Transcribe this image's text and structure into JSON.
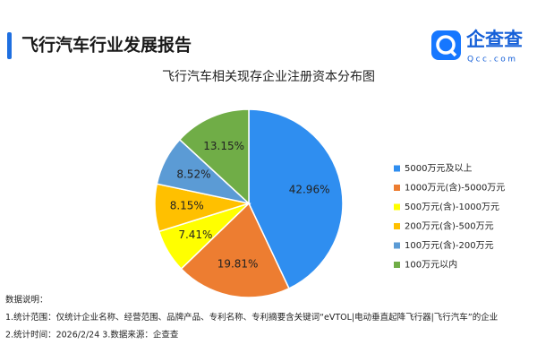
{
  "header": {
    "title": "飞行汽车行业发展报告",
    "logo_text": "企查查",
    "logo_domain": "Qcc.com"
  },
  "chart_data": {
    "type": "pie",
    "title": "飞行汽车相关现存企业注册资本分布图",
    "categories": [
      "5000万元及以上",
      "1000万元(含)-5000万元",
      "500万元(含)-1000万元",
      "200万元(含)-500万元",
      "100万元(含)-200万元",
      "100万元以内"
    ],
    "values": [
      42.96,
      19.81,
      7.41,
      8.15,
      8.52,
      13.15
    ],
    "value_labels": [
      "42.96%",
      "19.81%",
      "7.41%",
      "8.15%",
      "8.52%",
      "13.15%"
    ],
    "colors": [
      "#2f8ef0",
      "#ed7d31",
      "#ffff00",
      "#ffc000",
      "#5b9bd5",
      "#70ad47"
    ],
    "legend": "right"
  },
  "notes": [
    "数据说明：",
    "1.统计范围：仅统计企业名称、经营范围、品牌产品、专利名称、专利摘要含关键词“eVTOL|电动垂直起降飞行器|飞行汽车”的企业",
    "2.统计时间：2026/2/24 3.数据来源：企查查"
  ]
}
